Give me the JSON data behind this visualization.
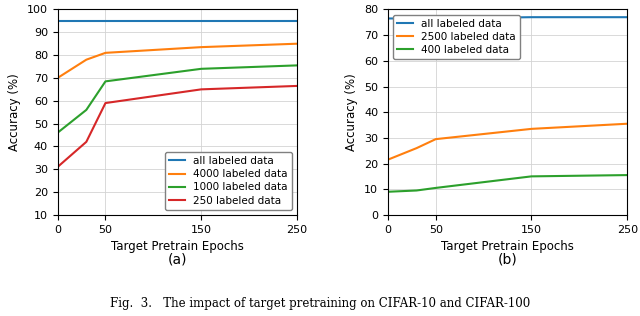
{
  "plot_a": {
    "xlabel": "Target Pretrain Epochs",
    "ylabel": "Accuracy (%)",
    "ylim": [
      10,
      100
    ],
    "yticks": [
      10,
      20,
      30,
      40,
      50,
      60,
      70,
      80,
      90,
      100
    ],
    "xticks": [
      0,
      50,
      150,
      250
    ],
    "xlim": [
      0,
      250
    ],
    "series": [
      {
        "label": "all labeled data",
        "color": "#1f77b4",
        "x": [
          0,
          50,
          150,
          250
        ],
        "y": [
          94.8,
          94.8,
          94.8,
          94.8
        ]
      },
      {
        "label": "4000 labeled data",
        "color": "#ff7f0e",
        "x": [
          0,
          30,
          50,
          150,
          250
        ],
        "y": [
          70.0,
          78.0,
          81.0,
          83.5,
          85.0
        ]
      },
      {
        "label": "1000 labeled data",
        "color": "#2ca02c",
        "x": [
          0,
          30,
          50,
          150,
          250
        ],
        "y": [
          46.0,
          56.0,
          68.5,
          74.0,
          75.5
        ]
      },
      {
        "label": "250 labeled data",
        "color": "#d62728",
        "x": [
          0,
          30,
          50,
          150,
          250
        ],
        "y": [
          31.0,
          42.0,
          59.0,
          65.0,
          66.5
        ]
      }
    ],
    "legend_loc": "lower right"
  },
  "plot_b": {
    "xlabel": "Target Pretrain Epochs",
    "ylabel": "Accuracy (%)",
    "ylim": [
      0,
      80
    ],
    "yticks": [
      0,
      10,
      20,
      30,
      40,
      50,
      60,
      70,
      80
    ],
    "xticks": [
      0,
      50,
      150,
      250
    ],
    "xlim": [
      0,
      250
    ],
    "series": [
      {
        "label": "all labeled data",
        "color": "#1f77b4",
        "x": [
          0,
          50,
          150,
          250
        ],
        "y": [
          76.5,
          76.5,
          77.0,
          77.0
        ]
      },
      {
        "label": "2500 labeled data",
        "color": "#ff7f0e",
        "x": [
          0,
          30,
          50,
          150,
          250
        ],
        "y": [
          21.5,
          26.0,
          29.5,
          33.5,
          35.5
        ]
      },
      {
        "label": "400 labeled data",
        "color": "#2ca02c",
        "x": [
          0,
          30,
          50,
          150,
          250
        ],
        "y": [
          9.0,
          9.5,
          10.5,
          15.0,
          15.5
        ]
      }
    ],
    "legend_loc": "upper left"
  },
  "label_a": "(a)",
  "label_b": "(b)",
  "caption": "Fig.  3.   The impact of target pretraining on CIFAR-10 and CIFAR-100",
  "background_color": "#ffffff"
}
